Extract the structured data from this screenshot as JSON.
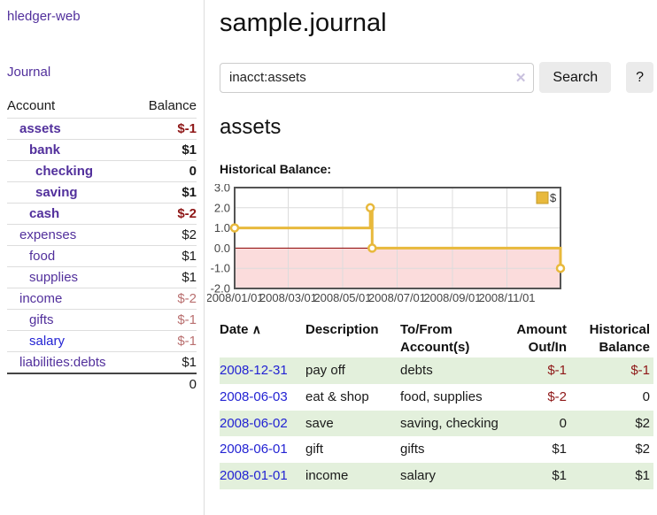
{
  "app_title": "hledger-web",
  "sidebar": {
    "journal_link": "Journal",
    "accounts": {
      "col_account": "Account",
      "col_balance": "Balance",
      "rows": [
        {
          "name": "assets",
          "balance": "$-1",
          "level": 1,
          "bold": true,
          "balance_cls": "neg",
          "link": "purple"
        },
        {
          "name": "bank",
          "balance": "$1",
          "level": 2,
          "bold": true,
          "balance_cls": "",
          "link": "purple"
        },
        {
          "name": "checking",
          "balance": "0",
          "level": 3,
          "bold": true,
          "balance_cls": "",
          "link": "purple"
        },
        {
          "name": "saving",
          "balance": "$1",
          "level": 3,
          "bold": true,
          "balance_cls": "",
          "link": "purple"
        },
        {
          "name": "cash",
          "balance": "$-2",
          "level": 2,
          "bold": true,
          "balance_cls": "neg",
          "link": "purple"
        },
        {
          "name": "expenses",
          "balance": "$2",
          "level": 1,
          "bold": false,
          "balance_cls": "",
          "link": "purple"
        },
        {
          "name": "food",
          "balance": "$1",
          "level": 2,
          "bold": false,
          "balance_cls": "",
          "link": "purple"
        },
        {
          "name": "supplies",
          "balance": "$1",
          "level": 2,
          "bold": false,
          "balance_cls": "",
          "link": "purple"
        },
        {
          "name": "income",
          "balance": "$-2",
          "level": 1,
          "bold": false,
          "balance_cls": "muted",
          "link": "purple"
        },
        {
          "name": "gifts",
          "balance": "$-1",
          "level": 2,
          "bold": false,
          "balance_cls": "muted",
          "link": "purple"
        },
        {
          "name": "salary",
          "balance": "$-1",
          "level": 2,
          "bold": false,
          "balance_cls": "muted",
          "link": "blue"
        },
        {
          "name": "liabilities:debts",
          "balance": "$1",
          "level": 1,
          "bold": false,
          "balance_cls": "",
          "link": "purple"
        }
      ],
      "total": "0"
    }
  },
  "main": {
    "title": "sample.journal",
    "search": {
      "value": "inacct:assets",
      "clear_icon": "✕",
      "search_button": "Search",
      "help_button": "?"
    },
    "account_heading": "assets",
    "section_label": "Historical Balance:"
  },
  "chart_data": {
    "type": "line",
    "step": true,
    "title": "Historical Balance:",
    "series": [
      {
        "name": "$",
        "color": "#e8b93c",
        "points": [
          [
            "2008-01-01",
            1
          ],
          [
            "2008-06-01",
            2
          ],
          [
            "2008-06-03",
            0
          ],
          [
            "2008-12-31",
            -1
          ]
        ]
      }
    ],
    "x_range": [
      "2008-01-01",
      "2008-12-31"
    ],
    "x_ticks": [
      {
        "date": "2008-01-01",
        "label": "2008/01/01"
      },
      {
        "date": "2008-03-01",
        "label": "2008/03/01"
      },
      {
        "date": "2008-05-01",
        "label": "2008/05/01"
      },
      {
        "date": "2008-07-01",
        "label": "2008/07/01"
      },
      {
        "date": "2008-09-01",
        "label": "2008/09/01"
      },
      {
        "date": "2008-11-01",
        "label": "2008/11/01"
      }
    ],
    "ylim": [
      -2,
      3
    ],
    "y_ticks": [
      "3.0",
      "2.0",
      "1.0",
      "0.0",
      "-1.0",
      "-2.0"
    ],
    "legend": {
      "label": "$",
      "position": "top-right"
    },
    "grid": true,
    "grid_color": "#dcdcdc",
    "negative_region_color": "#fbdcdc",
    "zero_line_color": "#8b0000",
    "border_color": "#545454",
    "marker": {
      "fill": "#ffffff",
      "radius": 4
    }
  },
  "register": {
    "sort_icon": "∧",
    "headers": [
      {
        "lines": [
          "Date"
        ],
        "align": "c-date",
        "sorted": true
      },
      {
        "lines": [
          "Description"
        ],
        "align": "c-desc",
        "sorted": false
      },
      {
        "lines": [
          "To/From",
          "Account(s)"
        ],
        "align": "c-acct",
        "sorted": false
      },
      {
        "lines": [
          "Amount",
          "Out/In"
        ],
        "align": "c-amt",
        "sorted": false
      },
      {
        "lines": [
          "Historical",
          "Balance"
        ],
        "align": "c-bal",
        "sorted": false
      }
    ],
    "rows": [
      {
        "date": "2008-12-31",
        "description": "pay off",
        "accounts": "debts",
        "amount": "$-1",
        "amount_neg": true,
        "balance": "$-1",
        "balance_neg": true
      },
      {
        "date": "2008-06-03",
        "description": "eat & shop",
        "accounts": "food, supplies",
        "amount": "$-2",
        "amount_neg": true,
        "balance": "0",
        "balance_neg": false
      },
      {
        "date": "2008-06-02",
        "description": "save",
        "accounts": "saving, checking",
        "amount": "0",
        "amount_neg": false,
        "balance": "$2",
        "balance_neg": false
      },
      {
        "date": "2008-06-01",
        "description": "gift",
        "accounts": "gifts",
        "amount": "$1",
        "amount_neg": false,
        "balance": "$2",
        "balance_neg": false
      },
      {
        "date": "2008-01-01",
        "description": "income",
        "accounts": "salary",
        "amount": "$1",
        "amount_neg": false,
        "balance": "$1",
        "balance_neg": false
      }
    ]
  },
  "colors": {
    "purple_link": "#52309c",
    "blue_link": "#2323d3",
    "negative": "#8e1717",
    "muted_negative": "#b96f6f",
    "row_green": "#e3f0dc",
    "gold": "#e8b93c"
  }
}
